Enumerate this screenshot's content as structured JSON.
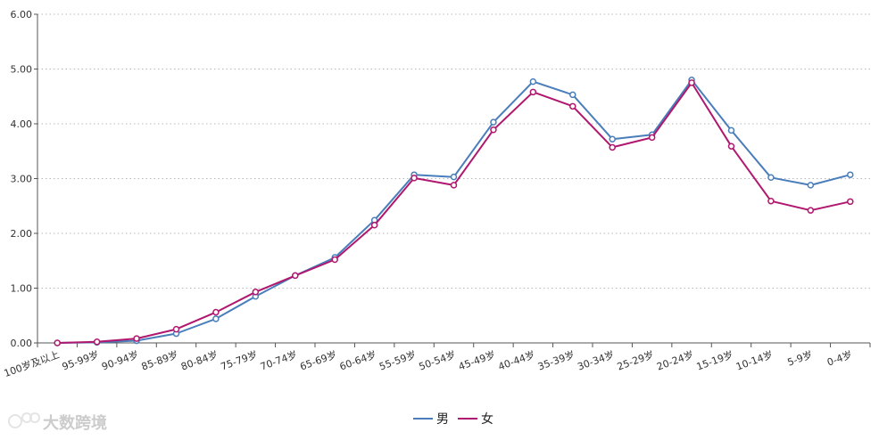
{
  "chart_data": {
    "type": "line",
    "x": [
      "100岁及以上",
      "95-99岁",
      "90-94岁",
      "85-89岁",
      "80-84岁",
      "75-79岁",
      "70-74岁",
      "65-69岁",
      "60-64岁",
      "55-59岁",
      "50-54岁",
      "45-49岁",
      "40-44岁",
      "35-39岁",
      "30-34岁",
      "25-29岁",
      "20-24岁",
      "15-19岁",
      "10-14岁",
      "5-9岁",
      "0-4岁"
    ],
    "series": [
      {
        "name": "男",
        "color": "#4a7ebb",
        "values": [
          0.0,
          0.01,
          0.04,
          0.17,
          0.44,
          0.85,
          1.23,
          1.56,
          2.24,
          3.07,
          3.03,
          4.03,
          4.77,
          4.53,
          3.72,
          3.8,
          4.8,
          3.88,
          3.02,
          2.88,
          3.07
        ]
      },
      {
        "name": "女",
        "color": "#b0176e",
        "values": [
          0.0,
          0.02,
          0.08,
          0.25,
          0.56,
          0.93,
          1.23,
          1.52,
          2.15,
          3.01,
          2.88,
          3.89,
          4.58,
          4.32,
          3.57,
          3.75,
          4.75,
          3.59,
          2.59,
          2.42,
          2.58
        ]
      }
    ],
    "ylim": [
      0,
      6
    ],
    "y_ticks": [
      "0.00",
      "1.00",
      "2.00",
      "3.00",
      "4.00",
      "5.00",
      "6.00"
    ],
    "grid": true,
    "legend_position": "bottom-center",
    "title": "",
    "xlabel": "",
    "ylabel": ""
  },
  "watermark": {
    "text": "大数跨境"
  }
}
